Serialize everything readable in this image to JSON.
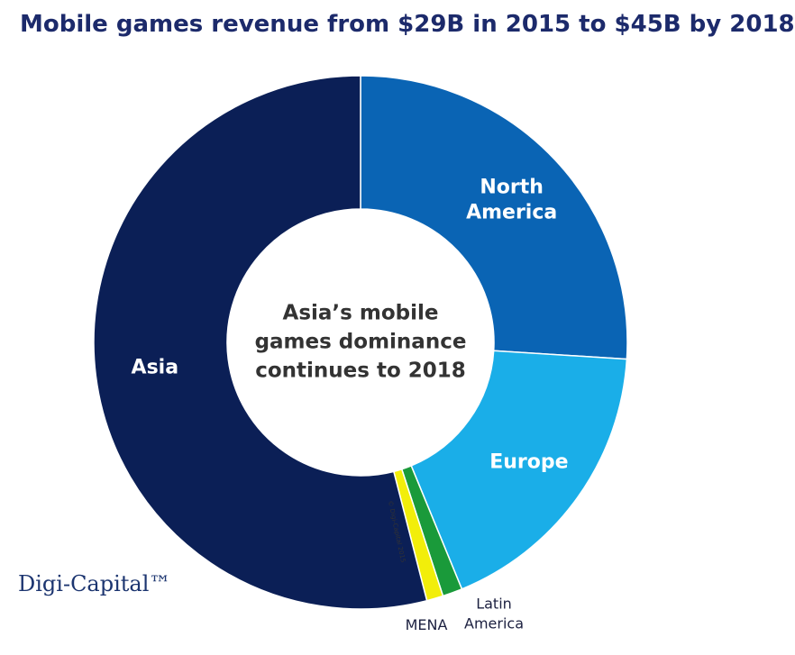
{
  "chart_data": {
    "type": "donut",
    "title": "Mobile games revenue from $29B in 2015 to $45B by 2018",
    "categories": [
      "North America",
      "Europe",
      "Latin America",
      "MENA",
      "Asia"
    ],
    "values": [
      26,
      17.8,
      1.2,
      1.0,
      54
    ],
    "colors": [
      "#0a64b4",
      "#1aaee8",
      "#1a9a3a",
      "#f2ee0a",
      "#0b1f56"
    ],
    "center_text": "Asia’s mobile games dominance continues to 2018",
    "copyright": "© Digi-Capital 2015",
    "logo": "Digi-Capital™"
  }
}
